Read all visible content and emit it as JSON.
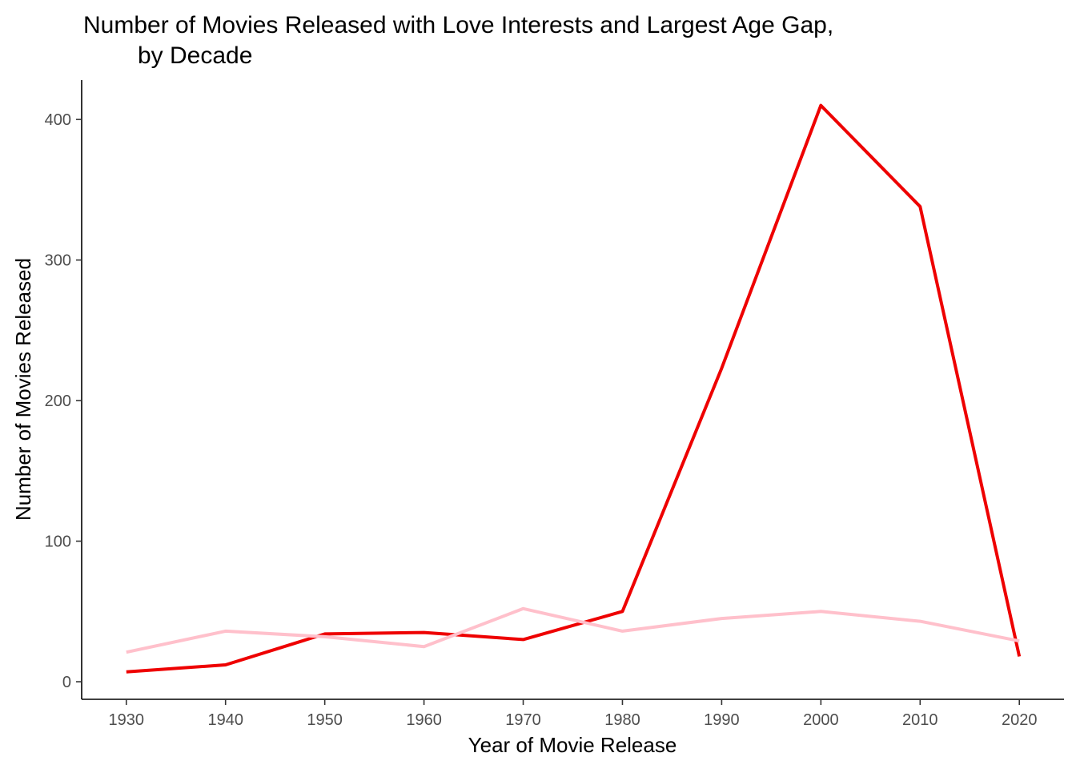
{
  "chart_data": {
    "type": "line",
    "title": "Number of Movies Released with Love Interests and Largest Age Gap,",
    "subtitle": "by Decade",
    "xlabel": "Year of Movie Release",
    "ylabel": "Number of Movies Released",
    "x": [
      1930,
      1940,
      1950,
      1960,
      1970,
      1980,
      1990,
      2000,
      2010,
      2020
    ],
    "x_ticks": [
      "1930",
      "1940",
      "1950",
      "1960",
      "1970",
      "1980",
      "1990",
      "2000",
      "2010",
      "2020"
    ],
    "y_ticks": [
      "0",
      "100",
      "200",
      "300",
      "400"
    ],
    "xlim": [
      1925.5,
      2024.5
    ],
    "ylim": [
      -12.5,
      428
    ],
    "grid": false,
    "legend": "none",
    "series": [
      {
        "color": "#ee0000",
        "values": [
          7,
          12,
          34,
          35,
          30,
          50,
          223,
          410,
          338,
          18
        ]
      },
      {
        "color": "#ffc0cb",
        "values": [
          21,
          36,
          32,
          25,
          52,
          36,
          45,
          50,
          43,
          29
        ]
      }
    ]
  }
}
